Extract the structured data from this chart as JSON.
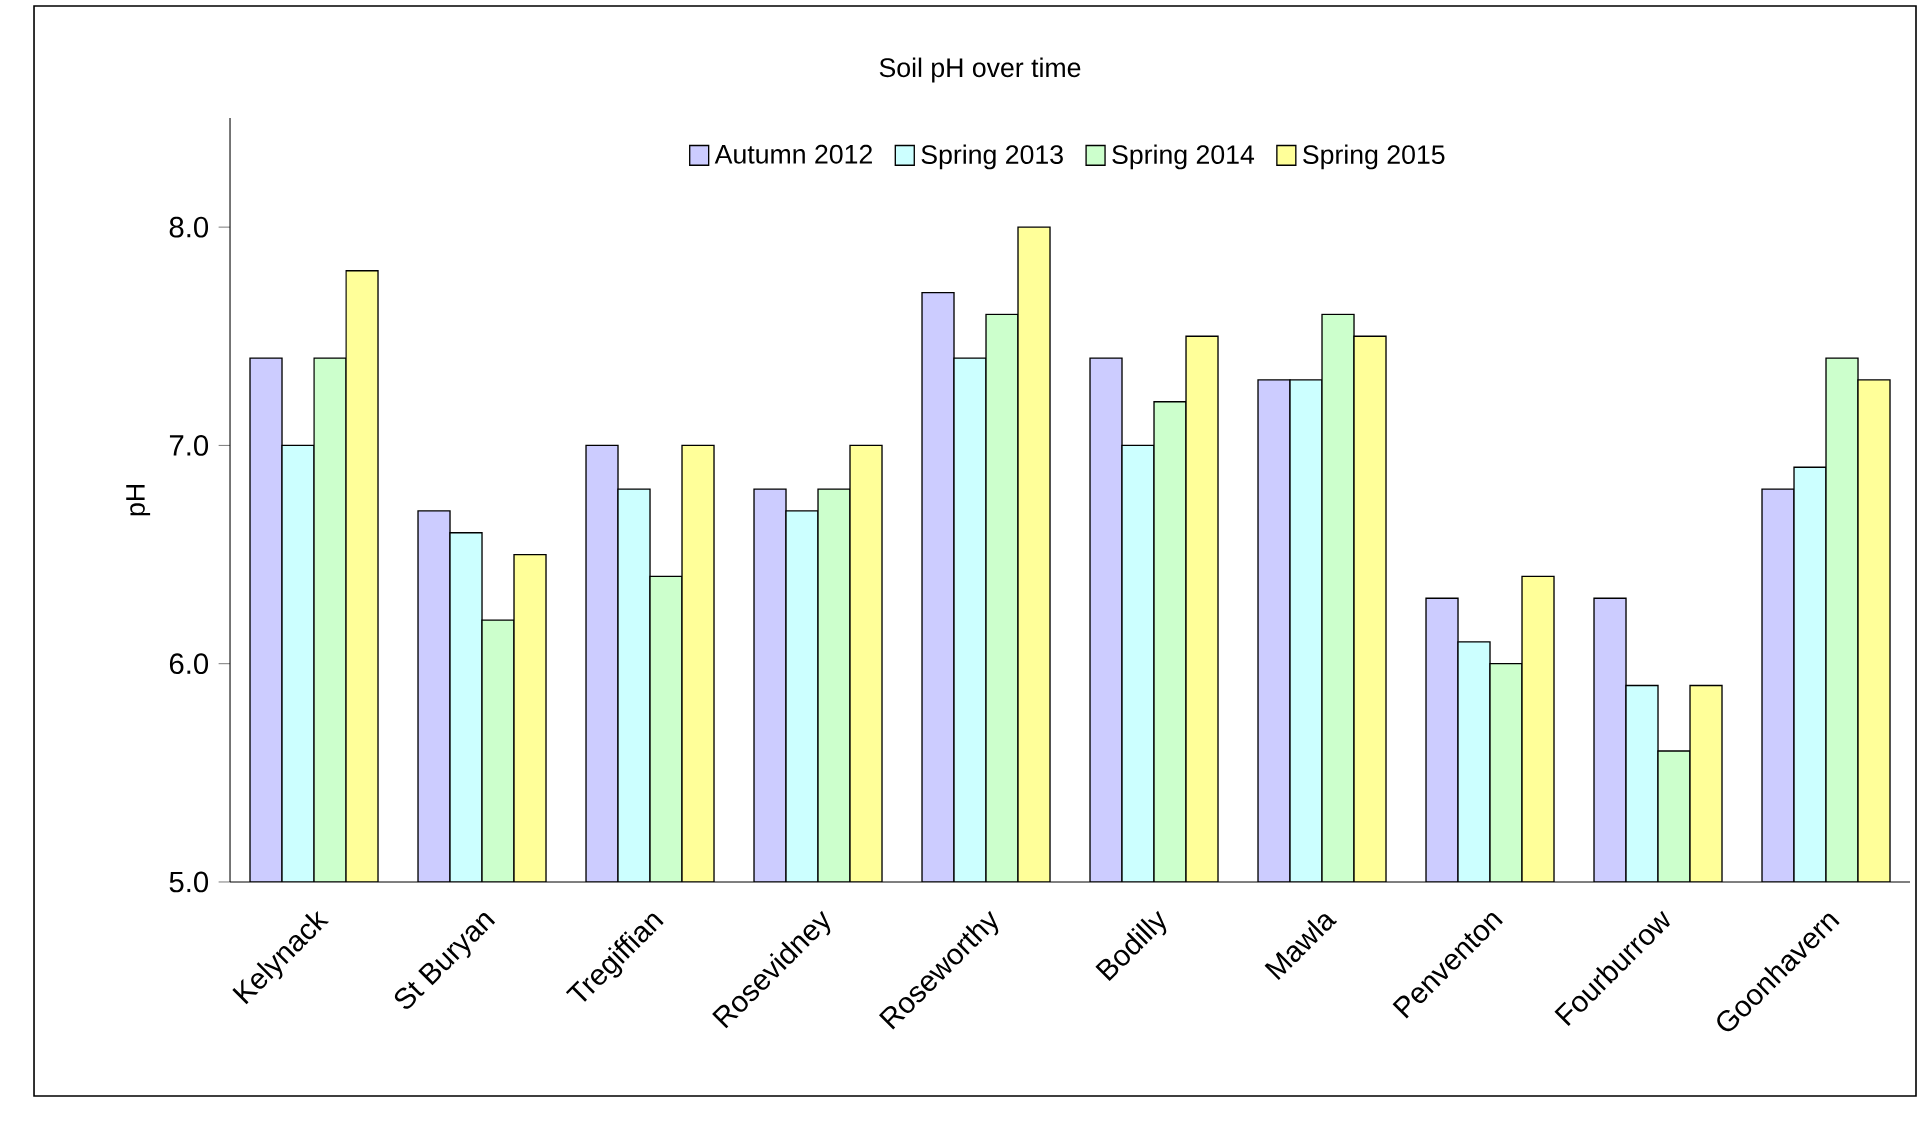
{
  "chart_data": {
    "type": "bar",
    "title": "Soil pH over time",
    "ylabel": "pH",
    "categories": [
      "Kelynack",
      "St Buryan",
      "Tregiffian",
      "Rosevidney",
      "Roseworthy",
      "Bodilly",
      "Mawla",
      "Penventon",
      "Fourburrow",
      "Goonhavern"
    ],
    "series": [
      {
        "name": "Autumn 2012",
        "color": "#ccccff",
        "values": [
          7.4,
          6.7,
          7.0,
          6.8,
          7.7,
          7.4,
          7.3,
          6.3,
          6.3,
          6.8
        ]
      },
      {
        "name": "Spring 2013",
        "color": "#ccffff",
        "values": [
          7.0,
          6.6,
          6.8,
          6.7,
          7.4,
          7.0,
          7.3,
          6.1,
          5.9,
          6.9
        ]
      },
      {
        "name": "Spring 2014",
        "color": "#ccffcc",
        "values": [
          7.4,
          6.2,
          6.4,
          6.8,
          7.6,
          7.2,
          7.6,
          6.0,
          5.6,
          7.4
        ]
      },
      {
        "name": "Spring 2015",
        "color": "#ffff99",
        "values": [
          7.8,
          6.5,
          7.0,
          7.0,
          8.0,
          7.5,
          7.5,
          6.4,
          5.9,
          7.3
        ]
      }
    ],
    "ylim": [
      5,
      8.5
    ],
    "yticks": [
      {
        "value": 5,
        "label": "5.0"
      },
      {
        "value": 6,
        "label": "6.0"
      },
      {
        "value": 7,
        "label": "7.0"
      },
      {
        "value": 8,
        "label": "8.0"
      }
    ],
    "grid": false,
    "legend": "top"
  }
}
